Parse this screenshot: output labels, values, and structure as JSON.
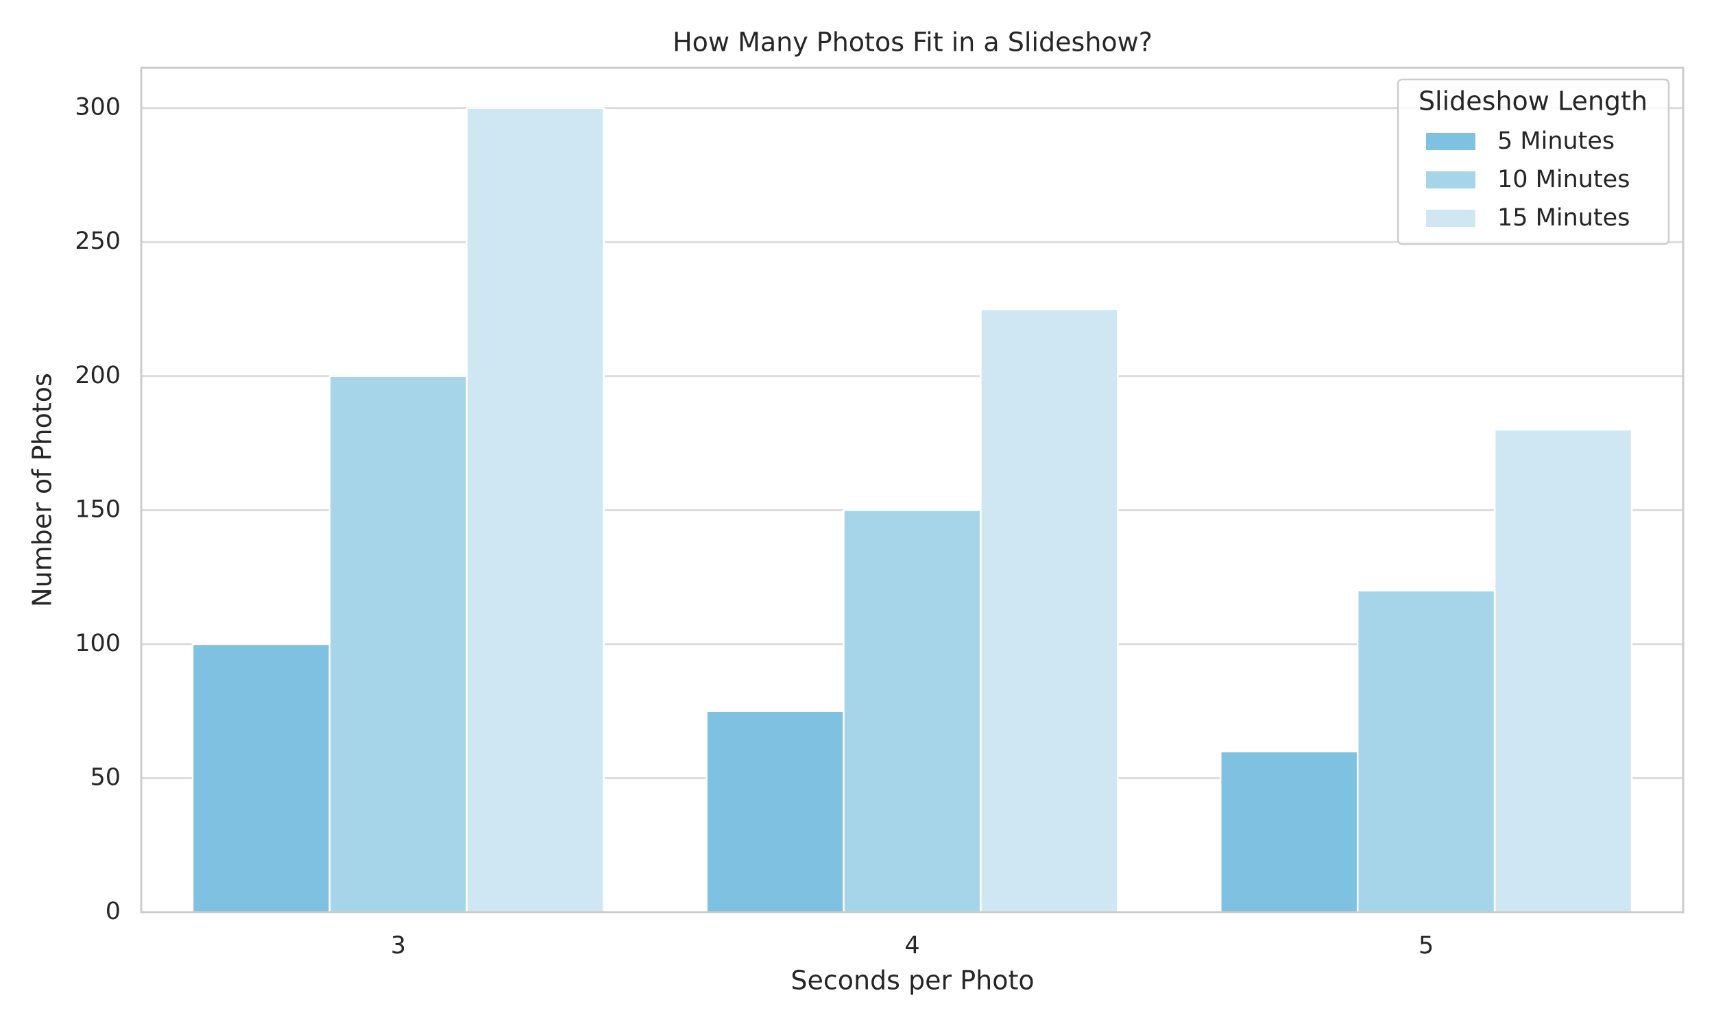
{
  "chart_data": {
    "type": "bar",
    "title": "How Many Photos Fit in a Slideshow?",
    "x_label": "Seconds per Photo",
    "y_label": "Number of Photos",
    "categories": [
      "3",
      "4",
      "5"
    ],
    "series": [
      {
        "name": "5 Minutes",
        "color": "#7fc1e0",
        "values": [
          100,
          75,
          60
        ]
      },
      {
        "name": "10 Minutes",
        "color": "#a6d5e9",
        "values": [
          200,
          150,
          120
        ]
      },
      {
        "name": "15 Minutes",
        "color": "#cfe7f2",
        "values": [
          300,
          225,
          180
        ]
      }
    ],
    "legend_title": "Slideshow Length",
    "legend_position": "upper right",
    "ylim": [
      0,
      315
    ],
    "yticks": [
      0,
      50,
      100,
      150,
      200,
      250,
      300
    ],
    "grid": true
  }
}
